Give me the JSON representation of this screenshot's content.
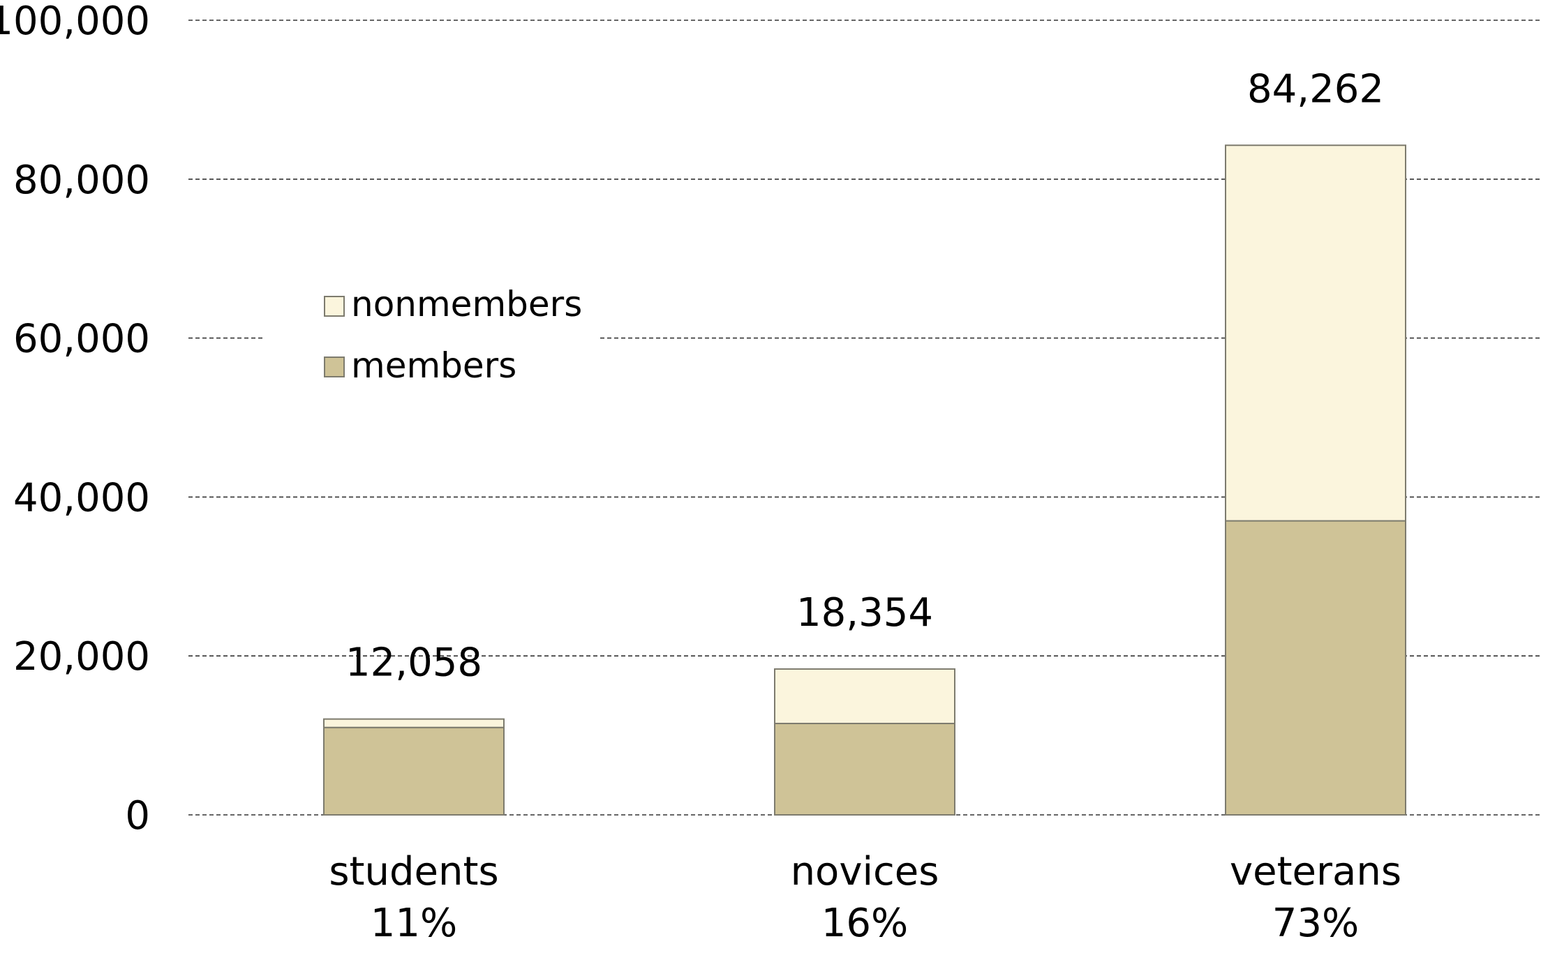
{
  "chart_data": {
    "type": "bar",
    "stacked": true,
    "categories": [
      "students",
      "novices",
      "veterans"
    ],
    "category_shares": [
      "11%",
      "16%",
      "73%"
    ],
    "series": [
      {
        "name": "members",
        "values": [
          11000,
          11500,
          37000
        ],
        "color": "#cfc397"
      },
      {
        "name": "nonmembers",
        "values": [
          1058,
          6854,
          47262
        ],
        "color": "#fbf5dd"
      }
    ],
    "totals": [
      12058,
      18354,
      84262
    ],
    "total_labels": [
      "12,058",
      "18,354",
      "84,262"
    ],
    "ylim": [
      0,
      100000
    ],
    "y_ticks": [
      0,
      20000,
      40000,
      60000,
      80000,
      100000
    ],
    "y_tick_labels": [
      "0",
      "20,000",
      "40,000",
      "60,000",
      "80,000",
      "100,000"
    ],
    "grid": true,
    "legend_position": "upper-left",
    "legend": [
      "nonmembers",
      "members"
    ]
  }
}
